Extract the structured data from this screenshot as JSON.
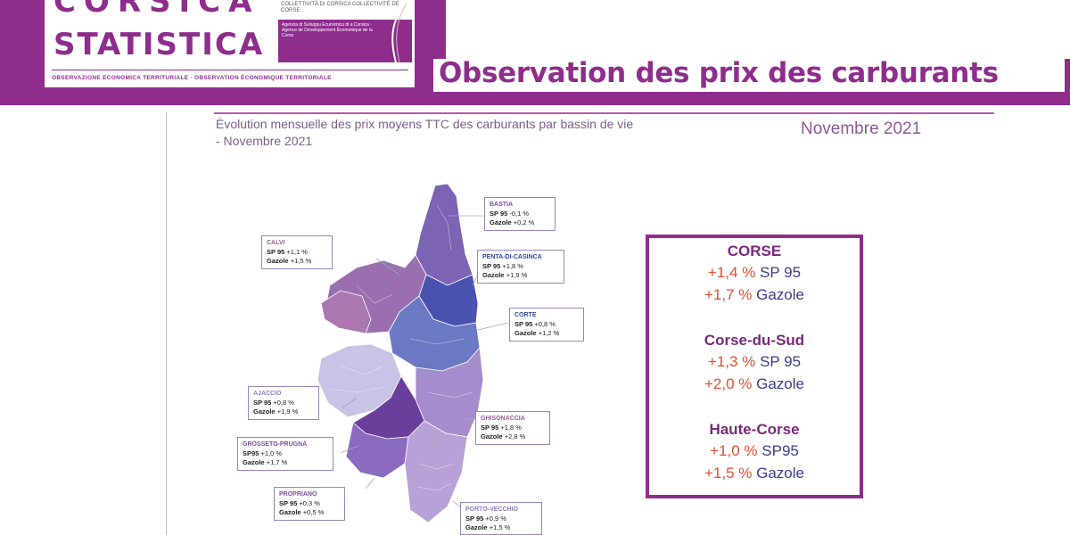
{
  "header": {
    "logo_line1": "CORSICA",
    "logo_line2": "STATISTICA",
    "logo_collectivite": "COLLETTIVITÀ DI CORSICA COLLECTIVITÉ DE CORSE",
    "logo_agency": "Agenzia di Sviluppu Ecunomicu di a Corsica · Agence de Développement Économique de la Corse",
    "logo_tagline": "OBSERVAZIONE ECONOMICA TERRITURIALE · OBSERVATION ÉCONOMIQUE TERRITORIALE",
    "title": "Observation des prix des carburants"
  },
  "content": {
    "subtitle_line1": "Évolution mensuelle des prix moyens TTC des carburants par bassin de vie",
    "subtitle_line2": "- Novembre 2021",
    "date": "Novembre 2021"
  },
  "regions": [
    {
      "name": "BASTIA",
      "line1_label": "SP 95",
      "line1_value": "-0,1 %",
      "line2_label": "Gazole",
      "line2_value": "+0,2 %"
    },
    {
      "name": "CALVI",
      "line1_label": "SP 95",
      "line1_value": "+1,1 %",
      "line2_label": "Gazole",
      "line2_value": "+1,5 %"
    },
    {
      "name": "PENTA-DI-CASINCA",
      "line1_label": "SP 95",
      "line1_value": "+1,8 %",
      "line2_label": "Gazole",
      "line2_value": "+1,9 %"
    },
    {
      "name": "CORTE",
      "line1_label": "SP 95",
      "line1_value": "+0,8 %",
      "line2_label": "Gazole",
      "line2_value": "+1,2 %"
    },
    {
      "name": "AJACCIO",
      "line1_label": "SP 95",
      "line1_value": "+0,8 %",
      "line2_label": "Gazole",
      "line2_value": "+1,9 %"
    },
    {
      "name": "GHISONACCIA",
      "line1_label": "SP 95",
      "line1_value": "+1,8 %",
      "line2_label": "Gazole",
      "line2_value": "+2,8 %"
    },
    {
      "name": "GROSSETO-PRUGNA",
      "line1_label": "SP95",
      "line1_value": "+1,0 %",
      "line2_label": "Gazole",
      "line2_value": "+1,7 %"
    },
    {
      "name": "PROPRIANO",
      "line1_label": "SP 95",
      "line1_value": "+0,3 %",
      "line2_label": "Gazole",
      "line2_value": "+0,5 %"
    },
    {
      "name": "PORTO-VECCHIO",
      "line1_label": "SP 95",
      "line1_value": "+0,9 %",
      "line2_label": "Gazole",
      "line2_value": "+1,5 %"
    }
  ],
  "summary": {
    "corse": {
      "title": "CORSE",
      "l1_pct": "+1,4 %",
      "l1_fuel": "SP 95",
      "l2_pct": "+1,7 %",
      "l2_fuel": "Gazole"
    },
    "sud": {
      "title": "Corse-du-Sud",
      "l1_pct": "+1,3 %",
      "l1_fuel": "SP 95",
      "l2_pct": "+2,0 %",
      "l2_fuel": "Gazole"
    },
    "haute": {
      "title": "Haute-Corse",
      "l1_pct": "+1,0 %",
      "l1_fuel": "SP95",
      "l2_pct": "+1,5 %",
      "l2_fuel": "Gazole"
    }
  },
  "colors": {
    "brand_purple": "#8e2d8c",
    "percent_orange": "#e0502e",
    "fuel_blue": "#3c3c8c"
  }
}
